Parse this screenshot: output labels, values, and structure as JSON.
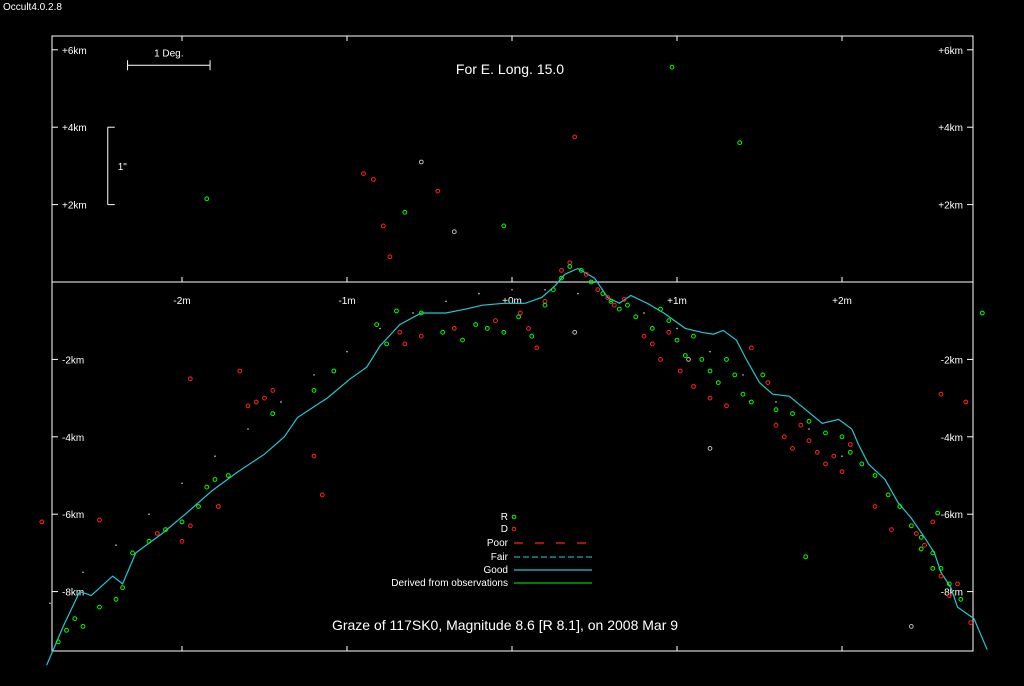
{
  "app": {
    "version": "Occult4.0.2.8"
  },
  "colors": {
    "background": "#000000",
    "frame": "#ffffff",
    "reappearance": "#00ff00",
    "disappearance": "#ff2020",
    "profile": "#20c8d0",
    "derived": "#00cc00",
    "other_events": "#bbbbbb"
  },
  "chart_data": {
    "type": "scatter",
    "title": "Graze of  117SK0,  Magnitude 8.6 [R 8.1],  on 2008 Mar  9",
    "subtitle": "For E. Long. 15.0",
    "xlabel": "",
    "ylabel": "",
    "xlim": [
      -2.8,
      2.8
    ],
    "ylim": [
      -9.4,
      6.5
    ],
    "grid": false,
    "legend_position": "bottom-center",
    "x_ticks": [
      {
        "value": -2,
        "label": "-2m"
      },
      {
        "value": -1,
        "label": "-1m"
      },
      {
        "value": 0,
        "label": "+0m"
      },
      {
        "value": 1,
        "label": "+1m"
      },
      {
        "value": 2,
        "label": "+2m"
      }
    ],
    "y_ticks": [
      {
        "value": 6,
        "label": "+6km"
      },
      {
        "value": 4,
        "label": "+4km"
      },
      {
        "value": 2,
        "label": "+2km"
      },
      {
        "value": -2,
        "label": "-2km"
      },
      {
        "value": -4,
        "label": "-4km"
      },
      {
        "value": -6,
        "label": "-6km"
      },
      {
        "value": -8,
        "label": "-8km"
      }
    ],
    "scale_bars": {
      "degree": {
        "label": "1 Deg.",
        "x0": -2.33,
        "x1": -1.83,
        "y": 5.6
      },
      "arcsec": {
        "label": "1\"",
        "x": -2.45,
        "y0": 2.0,
        "y1": 4.0
      }
    },
    "legend": {
      "r_label": "R",
      "d_label": "D",
      "poor_label": "Poor",
      "fair_label": "Fair",
      "good_label": "Good",
      "derived_label": "Derived from observations"
    },
    "limb_profile": [
      [
        -2.82,
        -9.9
      ],
      [
        -2.72,
        -8.9
      ],
      [
        -2.62,
        -8.0
      ],
      [
        -2.55,
        -8.1
      ],
      [
        -2.42,
        -7.6
      ],
      [
        -2.36,
        -7.8
      ],
      [
        -2.28,
        -7.0
      ],
      [
        -2.12,
        -6.5
      ],
      [
        -1.98,
        -6.0
      ],
      [
        -1.82,
        -5.4
      ],
      [
        -1.66,
        -4.9
      ],
      [
        -1.5,
        -4.45
      ],
      [
        -1.38,
        -4.0
      ],
      [
        -1.3,
        -3.5
      ],
      [
        -1.12,
        -3.0
      ],
      [
        -0.98,
        -2.5
      ],
      [
        -0.88,
        -2.2
      ],
      [
        -0.8,
        -1.65
      ],
      [
        -0.68,
        -1.1
      ],
      [
        -0.55,
        -0.8
      ],
      [
        -0.4,
        -0.8
      ],
      [
        -0.28,
        -0.7
      ],
      [
        -0.18,
        -0.6
      ],
      [
        -0.05,
        -0.55
      ],
      [
        0.08,
        -0.55
      ],
      [
        0.18,
        -0.4
      ],
      [
        0.26,
        -0.1
      ],
      [
        0.32,
        0.2
      ],
      [
        0.4,
        0.35
      ],
      [
        0.5,
        0.1
      ],
      [
        0.58,
        -0.4
      ],
      [
        0.65,
        -0.55
      ],
      [
        0.72,
        -0.35
      ],
      [
        0.82,
        -0.55
      ],
      [
        0.92,
        -0.8
      ],
      [
        1.05,
        -1.2
      ],
      [
        1.15,
        -1.3
      ],
      [
        1.22,
        -1.35
      ],
      [
        1.28,
        -1.25
      ],
      [
        1.36,
        -1.5
      ],
      [
        1.42,
        -2.0
      ],
      [
        1.5,
        -2.6
      ],
      [
        1.58,
        -2.9
      ],
      [
        1.68,
        -2.95
      ],
      [
        1.78,
        -3.3
      ],
      [
        1.88,
        -3.65
      ],
      [
        1.98,
        -3.55
      ],
      [
        2.06,
        -3.8
      ],
      [
        2.1,
        -4.2
      ],
      [
        2.16,
        -4.7
      ],
      [
        2.26,
        -5.1
      ],
      [
        2.34,
        -5.7
      ],
      [
        2.42,
        -6.1
      ],
      [
        2.5,
        -6.6
      ],
      [
        2.56,
        -7.0
      ],
      [
        2.6,
        -7.5
      ],
      [
        2.66,
        -7.9
      ],
      [
        2.7,
        -8.4
      ],
      [
        2.8,
        -8.7
      ],
      [
        2.88,
        -9.5
      ]
    ],
    "reappearances": [
      [
        -2.75,
        -9.3
      ],
      [
        -2.7,
        -9.0
      ],
      [
        -2.65,
        -8.7
      ],
      [
        -2.6,
        -8.9
      ],
      [
        -2.5,
        -8.4
      ],
      [
        -2.4,
        -8.2
      ],
      [
        -2.36,
        -7.9
      ],
      [
        -2.3,
        -7.0
      ],
      [
        -2.2,
        -6.7
      ],
      [
        -2.1,
        -6.4
      ],
      [
        -2.0,
        -6.2
      ],
      [
        -1.9,
        -5.8
      ],
      [
        -1.85,
        -5.3
      ],
      [
        -1.8,
        -5.1
      ],
      [
        -1.72,
        -5.0
      ],
      [
        -1.45,
        -3.4
      ],
      [
        -1.2,
        -2.8
      ],
      [
        -1.08,
        -2.3
      ],
      [
        -0.82,
        -1.1
      ],
      [
        -0.76,
        -1.6
      ],
      [
        -0.7,
        -0.75
      ],
      [
        -0.55,
        -0.8
      ],
      [
        -0.42,
        -1.3
      ],
      [
        -0.3,
        -1.5
      ],
      [
        -0.22,
        -1.1
      ],
      [
        -0.15,
        -1.2
      ],
      [
        -0.05,
        -1.3
      ],
      [
        0.04,
        -0.9
      ],
      [
        0.12,
        -1.4
      ],
      [
        0.2,
        -0.6
      ],
      [
        0.25,
        -0.2
      ],
      [
        0.3,
        0.1
      ],
      [
        0.35,
        0.4
      ],
      [
        0.42,
        0.3
      ],
      [
        0.48,
        0.0
      ],
      [
        0.55,
        -0.3
      ],
      [
        0.6,
        -0.5
      ],
      [
        0.65,
        -0.7
      ],
      [
        0.7,
        -0.6
      ],
      [
        0.75,
        -0.9
      ],
      [
        0.85,
        -1.2
      ],
      [
        0.9,
        -0.7
      ],
      [
        0.95,
        -1.0
      ],
      [
        1.0,
        -1.5
      ],
      [
        1.05,
        -1.9
      ],
      [
        1.1,
        -1.4
      ],
      [
        1.15,
        -2.0
      ],
      [
        1.2,
        -2.3
      ],
      [
        1.25,
        -2.6
      ],
      [
        1.3,
        -2.0
      ],
      [
        1.35,
        -2.4
      ],
      [
        1.4,
        -2.9
      ],
      [
        1.45,
        -3.1
      ],
      [
        1.52,
        -2.4
      ],
      [
        1.6,
        -3.3
      ],
      [
        1.7,
        -3.4
      ],
      [
        1.8,
        -3.6
      ],
      [
        1.9,
        -3.9
      ],
      [
        2.0,
        -4.0
      ],
      [
        2.05,
        -4.4
      ],
      [
        2.12,
        -4.7
      ],
      [
        2.2,
        -5.0
      ],
      [
        2.28,
        -5.5
      ],
      [
        2.35,
        -5.8
      ],
      [
        2.42,
        -6.3
      ],
      [
        2.48,
        -6.6
      ],
      [
        2.55,
        -7.0
      ],
      [
        2.6,
        -7.4
      ],
      [
        2.65,
        -7.8
      ],
      [
        2.72,
        -8.2
      ],
      [
        -1.85,
        2.15
      ],
      [
        -0.65,
        1.8
      ],
      [
        -0.05,
        1.45
      ],
      [
        0.97,
        5.55
      ],
      [
        1.38,
        3.6
      ],
      [
        2.58,
        -5.97
      ],
      [
        2.48,
        -6.9
      ],
      [
        1.78,
        -7.1
      ],
      [
        2.55,
        -7.4
      ],
      [
        2.85,
        -0.8
      ]
    ],
    "disappearances": [
      [
        -2.85,
        -6.2
      ],
      [
        -2.5,
        -6.15
      ],
      [
        -2.15,
        -6.5
      ],
      [
        -2.0,
        -6.7
      ],
      [
        -1.95,
        -6.3
      ],
      [
        -1.78,
        -5.8
      ],
      [
        -1.65,
        -2.3
      ],
      [
        -1.6,
        -3.2
      ],
      [
        -1.55,
        -3.1
      ],
      [
        -1.5,
        -3.0
      ],
      [
        -1.45,
        -2.8
      ],
      [
        -1.2,
        -4.5
      ],
      [
        -1.15,
        -5.5
      ],
      [
        -0.9,
        2.8
      ],
      [
        -0.84,
        2.65
      ],
      [
        -0.78,
        1.45
      ],
      [
        -0.74,
        0.65
      ],
      [
        -0.68,
        -1.3
      ],
      [
        -0.65,
        -1.6
      ],
      [
        -0.45,
        2.35
      ],
      [
        -0.55,
        -1.4
      ],
      [
        -0.35,
        -1.2
      ],
      [
        -0.1,
        -1.0
      ],
      [
        0.05,
        -0.8
      ],
      [
        0.1,
        -1.2
      ],
      [
        0.15,
        -1.7
      ],
      [
        0.2,
        -0.5
      ],
      [
        0.3,
        0.3
      ],
      [
        0.35,
        0.5
      ],
      [
        0.38,
        3.75
      ],
      [
        0.45,
        0.2
      ],
      [
        0.52,
        -0.2
      ],
      [
        0.58,
        -0.4
      ],
      [
        0.62,
        -0.6
      ],
      [
        0.68,
        -0.45
      ],
      [
        0.8,
        -1.4
      ],
      [
        0.85,
        -1.6
      ],
      [
        0.9,
        -2.0
      ],
      [
        0.95,
        -1.3
      ],
      [
        1.02,
        -2.3
      ],
      [
        1.1,
        -2.7
      ],
      [
        1.2,
        -3.0
      ],
      [
        1.3,
        -3.2
      ],
      [
        1.45,
        -1.7
      ],
      [
        1.55,
        -2.6
      ],
      [
        1.6,
        -3.7
      ],
      [
        1.65,
        -4.0
      ],
      [
        1.7,
        -4.3
      ],
      [
        1.75,
        -3.7
      ],
      [
        1.8,
        -4.1
      ],
      [
        1.85,
        -4.4
      ],
      [
        1.9,
        -4.7
      ],
      [
        1.95,
        -4.5
      ],
      [
        2.0,
        -4.9
      ],
      [
        2.05,
        -4.2
      ],
      [
        2.2,
        -5.8
      ],
      [
        2.3,
        -6.4
      ],
      [
        2.45,
        -6.5
      ],
      [
        2.5,
        -6.8
      ],
      [
        2.6,
        -7.6
      ],
      [
        2.7,
        -7.8
      ],
      [
        2.75,
        -3.1
      ],
      [
        2.6,
        -2.9
      ],
      [
        -1.95,
        -2.5
      ],
      [
        2.55,
        -6.2
      ],
      [
        2.65,
        -8.1
      ],
      [
        2.78,
        -8.8
      ]
    ],
    "other_events": [
      [
        -0.55,
        3.1
      ],
      [
        -0.35,
        1.3
      ],
      [
        0.38,
        -1.3
      ],
      [
        1.07,
        -2.0
      ],
      [
        1.2,
        -4.3
      ],
      [
        2.42,
        -8.9
      ]
    ],
    "prediction_limit": [
      [
        -2.8,
        -8.3
      ],
      [
        -2.6,
        -7.5
      ],
      [
        -2.4,
        -6.8
      ],
      [
        -2.2,
        -6.0
      ],
      [
        -2.0,
        -5.2
      ],
      [
        -1.8,
        -4.5
      ],
      [
        -1.6,
        -3.8
      ],
      [
        -1.4,
        -3.1
      ],
      [
        -1.2,
        -2.4
      ],
      [
        -1.0,
        -1.8
      ],
      [
        -0.8,
        -1.2
      ],
      [
        -0.6,
        -0.8
      ],
      [
        -0.4,
        -0.5
      ],
      [
        -0.2,
        -0.3
      ],
      [
        0.0,
        -0.2
      ],
      [
        0.2,
        -0.2
      ],
      [
        0.4,
        -0.3
      ],
      [
        0.6,
        -0.5
      ],
      [
        0.8,
        -0.8
      ],
      [
        1.0,
        -1.2
      ],
      [
        1.2,
        -1.8
      ],
      [
        1.4,
        -2.4
      ],
      [
        1.6,
        -3.1
      ],
      [
        1.8,
        -3.8
      ],
      [
        2.0,
        -4.5
      ]
    ]
  }
}
